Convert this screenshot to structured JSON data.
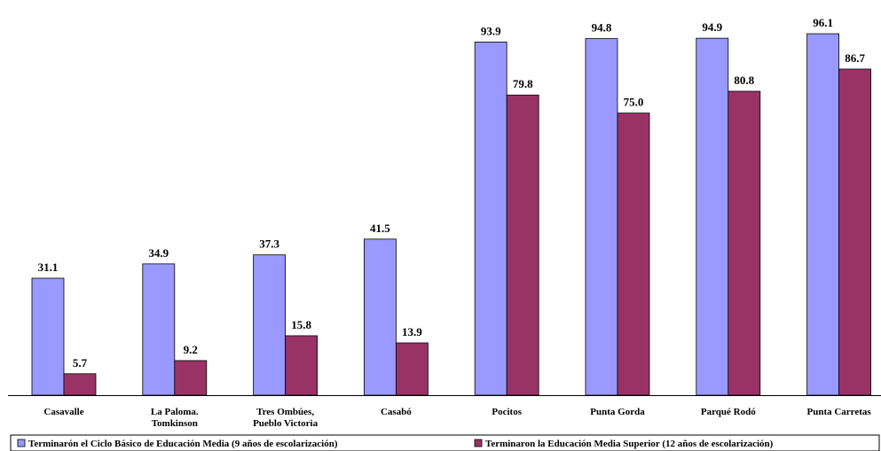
{
  "chart_data": {
    "type": "bar",
    "categories": [
      [
        "Casavalle"
      ],
      [
        "La Paloma.",
        "Tomkinson"
      ],
      [
        "Tres Ombúes,",
        "Pueblo Victoria"
      ],
      [
        "Casabó"
      ],
      [
        "Pocitos"
      ],
      [
        "Punta Gorda"
      ],
      [
        "Parqué Rodó"
      ],
      [
        "Punta Carretas"
      ]
    ],
    "series": [
      {
        "name": "Terminarón el Ciclo Básico de Educación Media (9 años de escolarización)",
        "color": "#9999ff",
        "values": [
          31.1,
          34.9,
          37.3,
          41.5,
          93.9,
          94.8,
          94.9,
          96.1
        ],
        "labels": [
          "31.1",
          "34.9",
          "37.3",
          "41.5",
          "93.9",
          "94.8",
          "94.9",
          "96.1"
        ]
      },
      {
        "name": "Terminaron la Educación Media Superior (12 años de escolarización)",
        "color": "#993366",
        "values": [
          5.7,
          9.2,
          15.8,
          13.9,
          79.8,
          75.0,
          80.8,
          86.7
        ],
        "labels": [
          "5.7",
          "9.2",
          "15.8",
          "13.9",
          "79.8",
          "75.0",
          "80.8",
          "86.7"
        ]
      }
    ],
    "title": "",
    "xlabel": "",
    "ylabel": "",
    "ylim": [
      0,
      100
    ],
    "grid": false,
    "legend": "bottom"
  }
}
